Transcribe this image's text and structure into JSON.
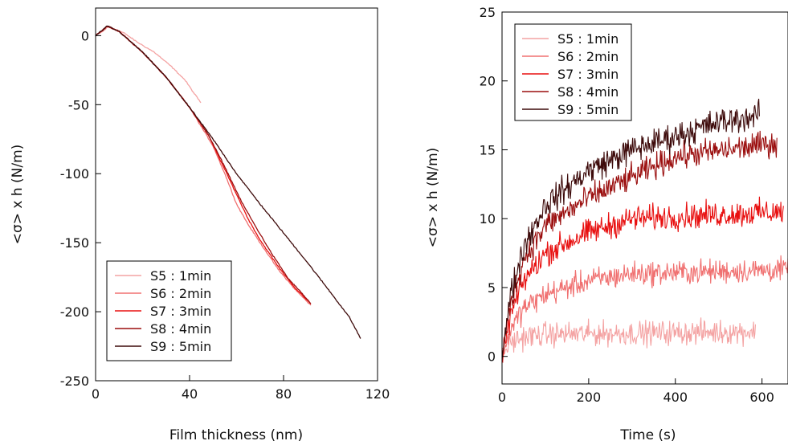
{
  "chart_data": [
    {
      "type": "line",
      "xlabel": "Film thickness (nm)",
      "ylabel": "<σ> x h (N/m)",
      "xlim": [
        0,
        120
      ],
      "ylim": [
        -250,
        20
      ],
      "xticks": [
        0,
        40,
        80,
        120
      ],
      "xtick_labels": [
        "0",
        "40",
        "80",
        "120"
      ],
      "yticks": [
        0,
        -50,
        -100,
        -150,
        -200,
        -250
      ],
      "ytick_labels": [
        "0",
        "-50",
        "-100",
        "-150",
        "-200",
        "-250"
      ],
      "legend_position": "bottom-left",
      "series": [
        {
          "name": "S5 : 1min",
          "color": "#f4a3a3",
          "points": [
            [
              0,
              0
            ],
            [
              3,
              3
            ],
            [
              5,
              6
            ],
            [
              8,
              5
            ],
            [
              12,
              2
            ],
            [
              18,
              -5
            ],
            [
              25,
              -12
            ],
            [
              32,
              -22
            ],
            [
              38,
              -32
            ],
            [
              42,
              -42
            ],
            [
              45,
              -49
            ]
          ]
        },
        {
          "name": "S6 : 2min",
          "color": "#f07070",
          "points": [
            [
              0,
              0
            ],
            [
              3,
              4
            ],
            [
              5,
              7
            ],
            [
              10,
              3
            ],
            [
              20,
              -12
            ],
            [
              30,
              -30
            ],
            [
              40,
              -52
            ],
            [
              50,
              -80
            ],
            [
              55,
              -100
            ],
            [
              60,
              -122
            ],
            [
              65,
              -137
            ],
            [
              70,
              -150
            ],
            [
              78,
              -170
            ],
            [
              85,
              -184
            ],
            [
              92,
              -196
            ]
          ]
        },
        {
          "name": "S7 : 3min",
          "color": "#e81010",
          "points": [
            [
              0,
              0
            ],
            [
              3,
              4
            ],
            [
              5,
              7
            ],
            [
              10,
              3
            ],
            [
              20,
              -12
            ],
            [
              30,
              -30
            ],
            [
              40,
              -52
            ],
            [
              48,
              -72
            ],
            [
              55,
              -97
            ],
            [
              60,
              -115
            ],
            [
              65,
              -133
            ],
            [
              70,
              -148
            ],
            [
              78,
              -168
            ],
            [
              85,
              -183
            ],
            [
              92,
              -195
            ]
          ]
        },
        {
          "name": "S8 : 4min",
          "color": "#9b0f0f",
          "points": [
            [
              0,
              0
            ],
            [
              3,
              4
            ],
            [
              5,
              7
            ],
            [
              10,
              3
            ],
            [
              20,
              -12
            ],
            [
              30,
              -30
            ],
            [
              40,
              -52
            ],
            [
              48,
              -72
            ],
            [
              55,
              -95
            ],
            [
              62,
              -120
            ],
            [
              68,
              -138
            ],
            [
              75,
              -158
            ],
            [
              82,
              -176
            ],
            [
              88,
              -187
            ],
            [
              92,
              -195
            ]
          ]
        },
        {
          "name": "S9 : 5min",
          "color": "#3d0a0a",
          "points": [
            [
              0,
              0
            ],
            [
              3,
              4
            ],
            [
              5,
              7
            ],
            [
              10,
              3
            ],
            [
              20,
              -12
            ],
            [
              30,
              -30
            ],
            [
              40,
              -52
            ],
            [
              50,
              -75
            ],
            [
              60,
              -100
            ],
            [
              70,
              -122
            ],
            [
              80,
              -143
            ],
            [
              90,
              -164
            ],
            [
              100,
              -186
            ],
            [
              108,
              -204
            ],
            [
              113,
              -220
            ]
          ]
        }
      ]
    },
    {
      "type": "line",
      "xlabel": "Time (s)",
      "ylabel": "<σ> x h (N/m)",
      "xlim": [
        0,
        660
      ],
      "ylim": [
        -2,
        25
      ],
      "xticks": [
        0,
        200,
        400,
        600
      ],
      "xtick_labels": [
        "0",
        "200",
        "400",
        "600"
      ],
      "yticks": [
        0,
        5,
        10,
        15,
        20,
        25
      ],
      "ytick_labels": [
        "0",
        "5",
        "10",
        "15",
        "20",
        "25"
      ],
      "legend_position": "top-left",
      "series": [
        {
          "name": "S5 : 1min",
          "color": "#f4a3a3",
          "t_end": 585,
          "trend": [
            [
              0,
              0
            ],
            [
              20,
              1.0
            ],
            [
              50,
              1.4
            ],
            [
              100,
              1.6
            ],
            [
              585,
              1.8
            ]
          ],
          "noise": 1.3
        },
        {
          "name": "S6 : 2min",
          "color": "#f07070",
          "t_end": 660,
          "trend": [
            [
              0,
              0
            ],
            [
              20,
              2.0
            ],
            [
              50,
              3.5
            ],
            [
              100,
              4.5
            ],
            [
              200,
              5.5
            ],
            [
              300,
              6.0
            ],
            [
              660,
              6.3
            ]
          ],
          "noise": 1.3
        },
        {
          "name": "S7 : 3min",
          "color": "#e81010",
          "t_end": 650,
          "trend": [
            [
              0,
              0
            ],
            [
              20,
              3.0
            ],
            [
              50,
              5.5
            ],
            [
              100,
              7.5
            ],
            [
              200,
              9.0
            ],
            [
              300,
              10.0
            ],
            [
              650,
              10.5
            ]
          ],
          "noise": 1.4
        },
        {
          "name": "S8 : 4min",
          "color": "#9b0f0f",
          "t_end": 635,
          "trend": [
            [
              0,
              0
            ],
            [
              20,
              4.0
            ],
            [
              50,
              7.0
            ],
            [
              100,
              9.5
            ],
            [
              200,
              11.5
            ],
            [
              300,
              13.0
            ],
            [
              400,
              14.5
            ],
            [
              635,
              15.5
            ]
          ],
          "noise": 1.4
        },
        {
          "name": "S9 : 5min",
          "color": "#3d0a0a",
          "t_end": 595,
          "trend": [
            [
              0,
              0
            ],
            [
              20,
              4.5
            ],
            [
              50,
              8.0
            ],
            [
              100,
              11.0
            ],
            [
              200,
              13.5
            ],
            [
              300,
              15.0
            ],
            [
              400,
              16.0
            ],
            [
              500,
              17.0
            ],
            [
              595,
              17.5
            ]
          ],
          "noise": 1.5
        }
      ]
    }
  ]
}
